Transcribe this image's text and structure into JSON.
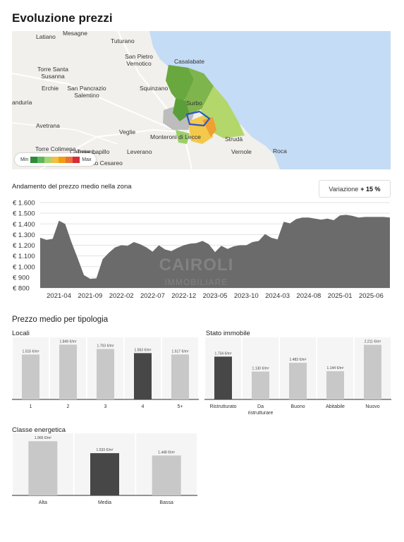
{
  "title": "Evoluzione prezzi",
  "map": {
    "labels": [
      "Mesagne",
      "Latiano",
      "Tuturano",
      "San Pietro Vernotico",
      "Casalabate",
      "Torre Santa Susanna",
      "Erchie",
      "San Pancrazio Salentino",
      "Squinzano",
      "anduria",
      "Avetrana",
      "Veglie",
      "Monteroni di Lecce",
      "Surbo",
      "Strudà",
      "Vernole",
      "Torre Colimena",
      "Leverano",
      "Carmiano",
      "Torre Lapillo",
      "Porto Cesareo",
      "Roca"
    ],
    "legend": {
      "min": "Min",
      "max": "Max",
      "colors": [
        "#2e8b3a",
        "#5cb85c",
        "#a8d46f",
        "#f0c040",
        "#f39c12",
        "#e8733a",
        "#d62d3a"
      ]
    }
  },
  "trend": {
    "label": "Andamento del prezzo medio nella zona",
    "variation_label": "Variazione",
    "variation_value": "+ 15 %",
    "watermark_line1": "CAIROLI",
    "watermark_line2": "IMMOBILIARE"
  },
  "chart_data": [
    {
      "type": "area",
      "title": "Andamento del prezzo medio nella zona",
      "yticks": [
        "€ 1.600",
        "€ 1.500",
        "€ 1.400",
        "€ 1.300",
        "€ 1.200",
        "€ 1.100",
        "€ 1.000",
        "€ 900",
        "€ 800"
      ],
      "ylim": [
        800,
        1600
      ],
      "xticks": [
        "2021-04",
        "2021-09",
        "2022-02",
        "2022-07",
        "2022-12",
        "2023-05",
        "2023-10",
        "2024-03",
        "2024-08",
        "2025-01",
        "2025-06"
      ],
      "x": [
        "2021-01",
        "2021-02",
        "2021-03",
        "2021-04",
        "2021-05",
        "2021-06",
        "2021-07",
        "2021-08",
        "2021-09",
        "2021-10",
        "2021-11",
        "2021-12",
        "2022-01",
        "2022-02",
        "2022-03",
        "2022-04",
        "2022-05",
        "2022-06",
        "2022-07",
        "2022-08",
        "2022-09",
        "2022-10",
        "2022-11",
        "2022-12",
        "2023-01",
        "2023-02",
        "2023-03",
        "2023-04",
        "2023-05",
        "2023-06",
        "2023-07",
        "2023-08",
        "2023-09",
        "2023-10",
        "2023-11",
        "2023-12",
        "2024-01",
        "2024-02",
        "2024-03",
        "2024-04",
        "2024-05",
        "2024-06",
        "2024-07",
        "2024-08",
        "2024-09",
        "2024-10",
        "2024-11",
        "2024-12",
        "2025-01",
        "2025-02",
        "2025-03",
        "2025-04",
        "2025-05",
        "2025-06",
        "2025-07",
        "2025-08",
        "2025-09"
      ],
      "values": [
        1270,
        1250,
        1260,
        1430,
        1400,
        1230,
        1080,
        920,
        885,
        890,
        1070,
        1130,
        1180,
        1200,
        1195,
        1230,
        1210,
        1180,
        1140,
        1200,
        1160,
        1145,
        1175,
        1200,
        1215,
        1220,
        1240,
        1210,
        1135,
        1195,
        1165,
        1190,
        1200,
        1200,
        1230,
        1240,
        1305,
        1270,
        1255,
        1420,
        1405,
        1445,
        1460,
        1460,
        1450,
        1440,
        1450,
        1435,
        1480,
        1485,
        1475,
        1460,
        1465,
        1465,
        1465,
        1465,
        1460
      ]
    },
    {
      "type": "bar",
      "title": "Locali",
      "categories": [
        "1",
        "2",
        "3",
        "4",
        "5+"
      ],
      "values": [
        1515,
        1849,
        1703,
        1563,
        1517
      ],
      "labels": [
        "1.515 €/m²",
        "1.849 €/m²",
        "1.703 €/m²",
        "1.563 €/m²",
        "1.517 €/m²"
      ],
      "highlight": 3,
      "ylim": [
        0,
        2000
      ]
    },
    {
      "type": "bar",
      "title": "Stato immobile",
      "categories": [
        "Ristrutturato",
        "Da ristrutturare",
        "Buono",
        "Abitabile",
        "Nuovo"
      ],
      "values": [
        1734,
        1130,
        1483,
        1144,
        2211
      ],
      "labels": [
        "1.734 €/m²",
        "1.130 €/m²",
        "1.483 €/m²",
        "1.144 €/m²",
        "2.211 €/m²"
      ],
      "highlight": 0,
      "ylim": [
        0,
        2400
      ]
    },
    {
      "type": "bar",
      "title": "Classe energetica",
      "categories": [
        "Alta",
        "Media",
        "Bassa"
      ],
      "values": [
        1965,
        1533,
        1448
      ],
      "labels": [
        "1.965 €/m²",
        "1.533 €/m²",
        "1.448 €/m²"
      ],
      "highlight": 1,
      "ylim": [
        0,
        2150
      ]
    }
  ],
  "sections": {
    "by_type": "Prezzo medio per tipologia",
    "locali": "Locali",
    "stato": "Stato immobile",
    "classe": "Classe energetica"
  },
  "colors": {
    "area": "#6b6b6b",
    "bar": "#c8c8c8",
    "bar_highlight": "#474747",
    "panel_bg": "#f5f5f5"
  }
}
